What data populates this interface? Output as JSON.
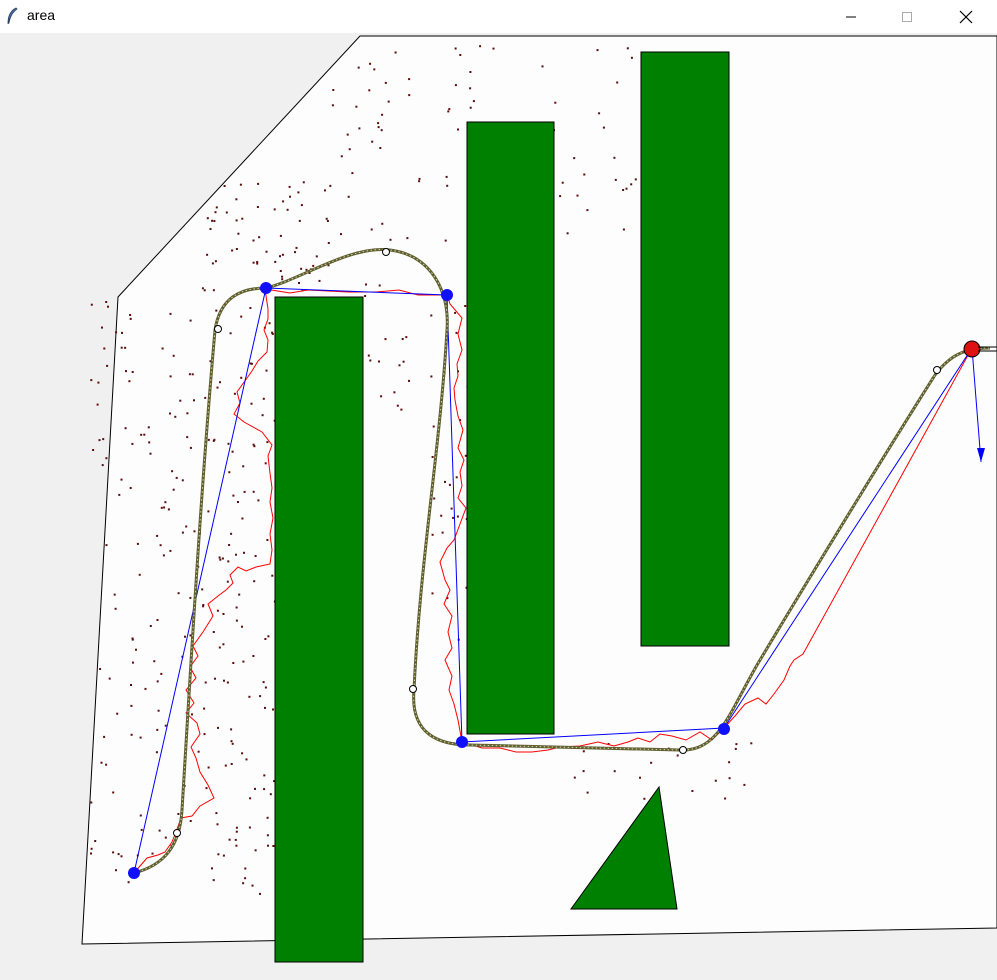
{
  "window": {
    "title": "area",
    "controls": {
      "minimize": "minimize-icon",
      "maximize": "maximize-icon",
      "close": "close-icon"
    }
  },
  "colors": {
    "obstacle": "#008000",
    "path_planned": "#0000ff",
    "path_tree": "#ff0000",
    "trajectory": "#6b6b3a",
    "samples": "#5a0d0d",
    "waypoint": "#1010ff",
    "robot": "#dd1111",
    "area_fill": "#ffffff"
  },
  "icons": {
    "app": "feather-icon"
  }
}
